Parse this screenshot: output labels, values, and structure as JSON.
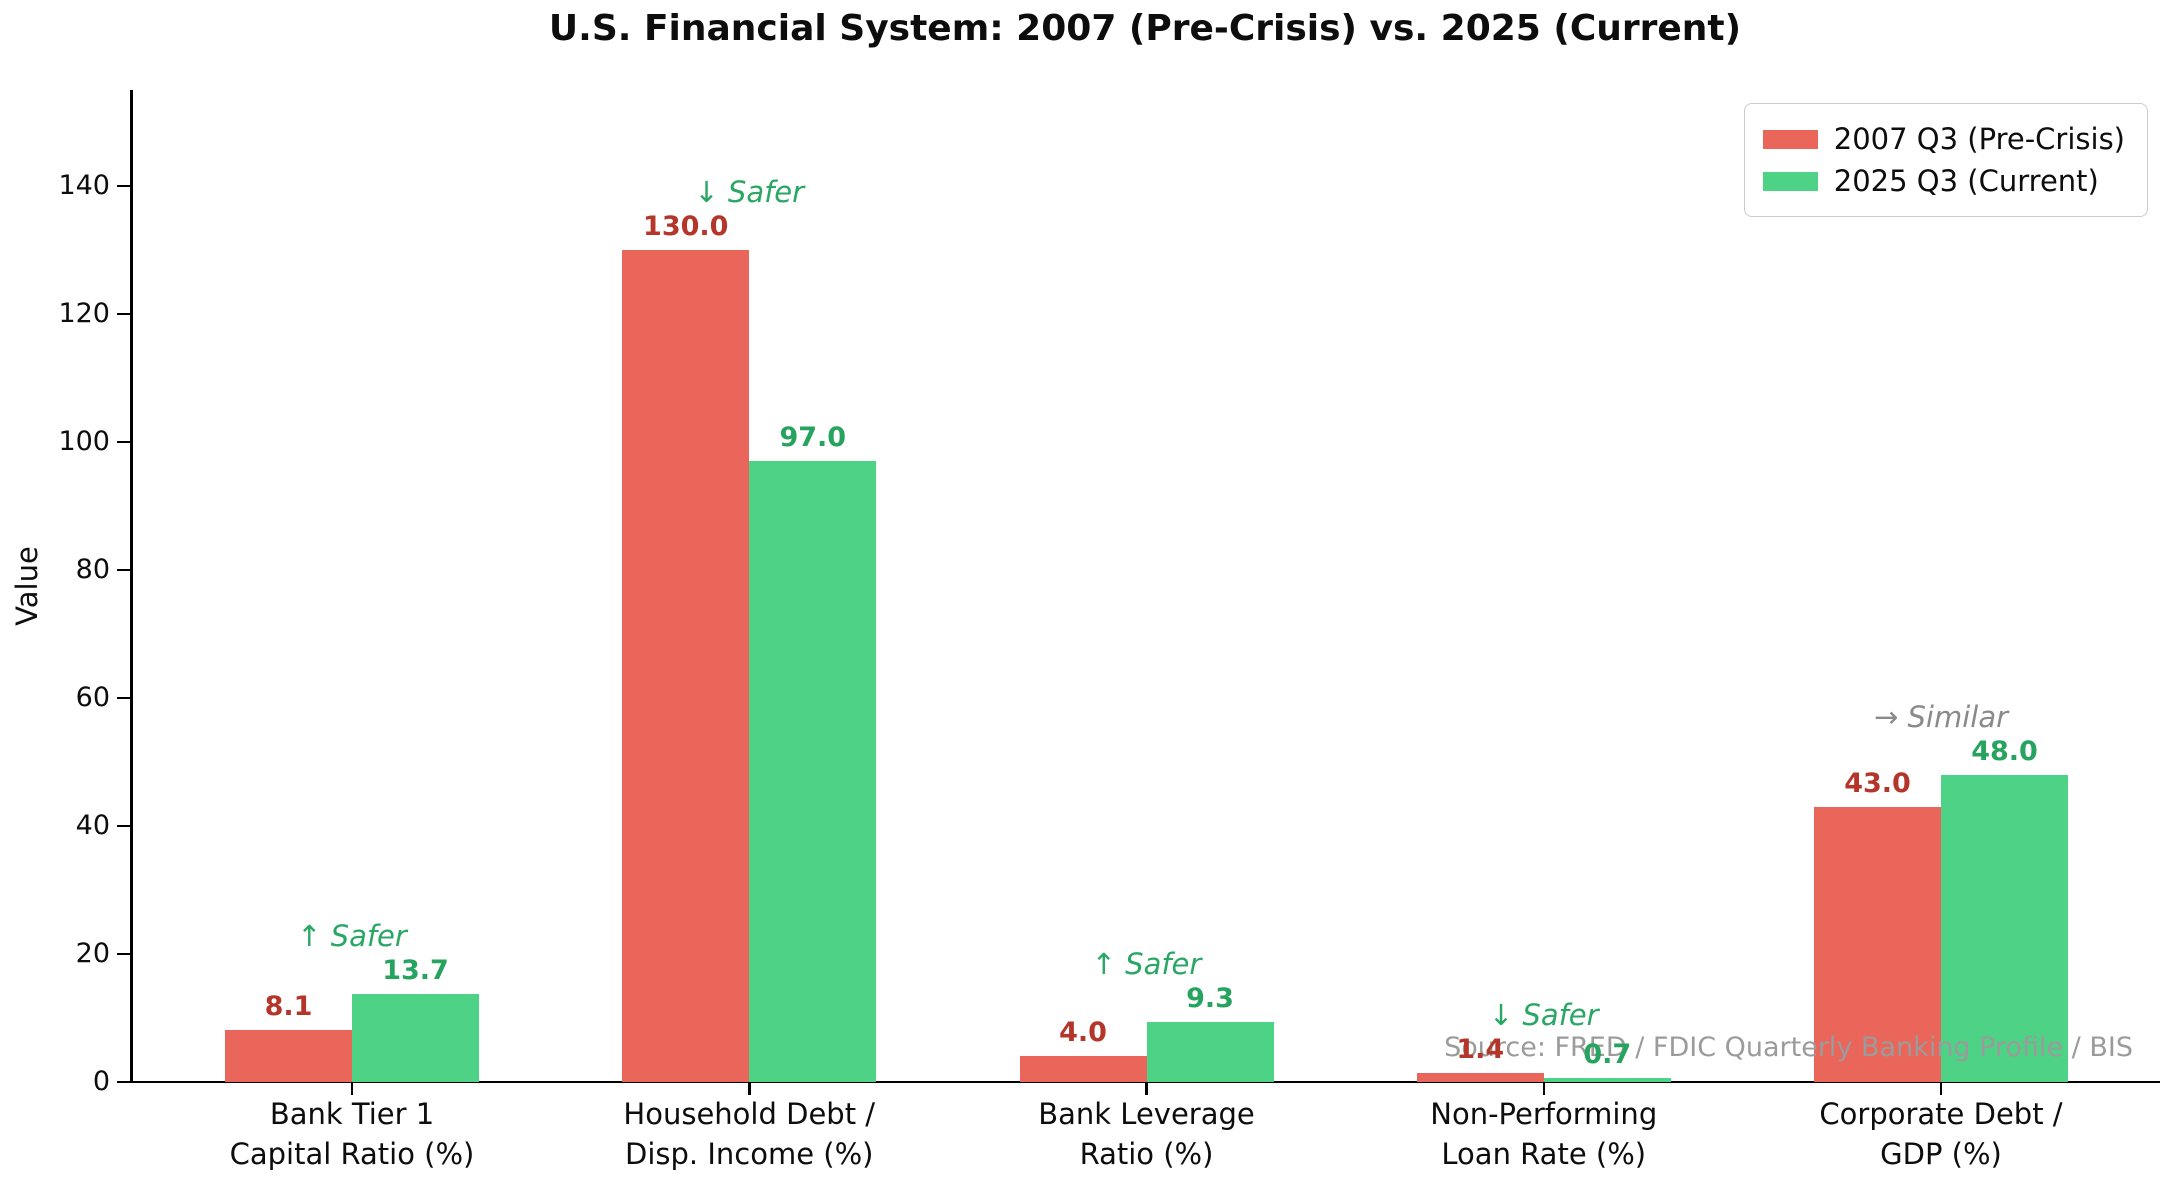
{
  "title": "U.S. Financial System: 2007 (Pre-Crisis) vs. 2025 (Current)",
  "ylabel": "Value",
  "source_note": "Source: FRED / FDIC Quarterly Banking Profile / BIS",
  "legend": [
    {
      "label": "2007 Q3 (Pre-Crisis)",
      "color": "#ea665a"
    },
    {
      "label": "2025 Q3 (Current)",
      "color": "#4dd286"
    }
  ],
  "chart_data": {
    "type": "bar",
    "title": "U.S. Financial System: 2007 (Pre-Crisis) vs. 2025 (Current)",
    "xlabel": "",
    "ylabel": "Value",
    "ylim": [
      0,
      155
    ],
    "yticks": [
      0,
      20,
      40,
      60,
      80,
      100,
      120,
      140
    ],
    "grid": false,
    "legend_position": "upper right",
    "categories": [
      "Bank Tier 1\nCapital Ratio (%)",
      "Household Debt /\nDisp. Income (%)",
      "Bank Leverage\nRatio (%)",
      "Non-Performing\nLoan Rate (%)",
      "Corporate Debt /\nGDP (%)"
    ],
    "series": [
      {
        "name": "2007 Q3 (Pre-Crisis)",
        "color": "#ea665a",
        "label_color": "#b4362a",
        "values": [
          8.1,
          130.0,
          4.0,
          1.4,
          43.0
        ],
        "labels": [
          "8.1",
          "130.0",
          "4.0",
          "1.4",
          "43.0"
        ]
      },
      {
        "name": "2025 Q3 (Current)",
        "color": "#4dd286",
        "label_color": "#26a35e",
        "values": [
          13.7,
          97.0,
          9.3,
          0.7,
          48.0
        ],
        "labels": [
          "13.7",
          "97.0",
          "9.3",
          "0.7",
          "48.0"
        ]
      }
    ],
    "annotations": [
      {
        "text": "↑ Safer",
        "color": "#2aa765"
      },
      {
        "text": "↓ Safer",
        "color": "#2aa765"
      },
      {
        "text": "↑ Safer",
        "color": "#2aa765"
      },
      {
        "text": "↓ Safer",
        "color": "#2aa765"
      },
      {
        "text": "→ Similar",
        "color": "#8a8a8a"
      }
    ]
  }
}
